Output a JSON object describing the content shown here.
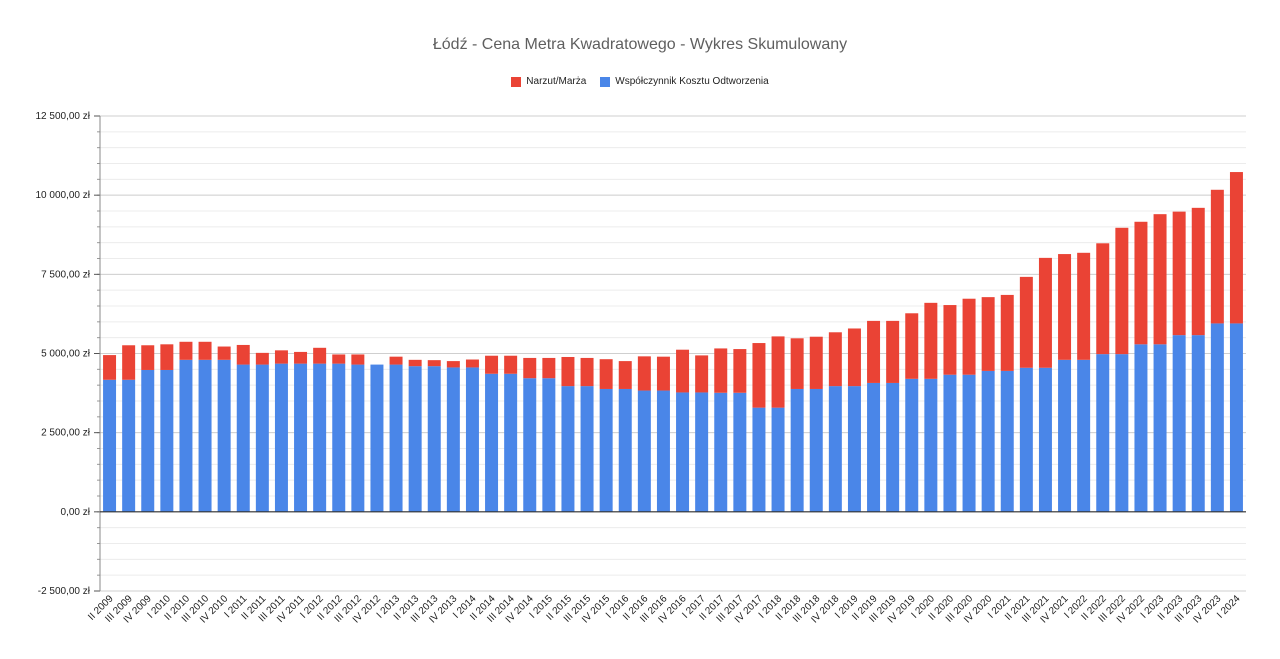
{
  "chart_data": {
    "type": "bar",
    "stacked": true,
    "title": "Łódź - Cena Metra Kwadratowego - Wykres Skumulowany",
    "xlabel": "",
    "ylabel": "",
    "ylim": [
      -2500,
      12500
    ],
    "yticks": [
      -2500,
      0,
      2500,
      5000,
      7500,
      10000,
      12500
    ],
    "ytick_labels": [
      "-2 500,00 zł",
      "0,00 zł",
      "2 500,00 zł",
      "5 000,00 zł",
      "7 500,00 zł",
      "10 000,00 zł",
      "12 500,00 zł"
    ],
    "grid": true,
    "legend": "top-center",
    "categories": [
      "II 2009",
      "III 2009",
      "IV 2009",
      "I 2010",
      "II 2010",
      "III 2010",
      "IV 2010",
      "I 2011",
      "II 2011",
      "III 2011",
      "IV 2011",
      "I 2012",
      "II 2012",
      "III 2012",
      "IV 2012",
      "I 2013",
      "II 2013",
      "III 2013",
      "IV 2013",
      "I 2014",
      "II 2014",
      "III 2014",
      "IV 2014",
      "I 2015",
      "II 2015",
      "III 2015",
      "IV 2015",
      "I 2016",
      "II 2016",
      "III 2016",
      "IV 2016",
      "I 2017",
      "II 2017",
      "III 2017",
      "IV 2017",
      "I 2018",
      "II 2018",
      "III 2018",
      "IV 2018",
      "I 2019",
      "II 2019",
      "III 2019",
      "IV 2019",
      "I 2020",
      "II 2020",
      "III 2020",
      "IV 2020",
      "I 2021",
      "II 2021",
      "III 2021",
      "IV 2021",
      "I 2022",
      "II 2022",
      "III 2022",
      "IV 2022",
      "I 2023",
      "II 2023",
      "III 2023",
      "IV 2023",
      "I 2024"
    ],
    "series": [
      {
        "name": "Współczynnik Kosztu Odtworzenia",
        "color": "#4a86e8",
        "values": [
          4170,
          4170,
          4480,
          4480,
          4800,
          4800,
          4800,
          4650,
          4650,
          4680,
          4680,
          4680,
          4680,
          4650,
          4650,
          4650,
          4600,
          4600,
          4560,
          4560,
          4360,
          4360,
          4220,
          4220,
          3970,
          3970,
          3880,
          3880,
          3830,
          3830,
          3770,
          3770,
          3760,
          3760,
          3290,
          3290,
          3880,
          3880,
          3970,
          3970,
          4070,
          4070,
          4200,
          4200,
          4330,
          4330,
          4450,
          4450,
          4550,
          4550,
          4800,
          4800,
          4980,
          4980,
          5290,
          5290,
          5580,
          5580,
          5950,
          5950
        ]
      },
      {
        "name": "Narzut/Marża",
        "color": "#ea4335",
        "values": [
          780,
          1090,
          780,
          810,
          570,
          570,
          420,
          620,
          370,
          420,
          370,
          500,
          290,
          320,
          0,
          250,
          200,
          190,
          200,
          250,
          570,
          570,
          640,
          640,
          920,
          890,
          940,
          880,
          1080,
          1070,
          1350,
          1170,
          1400,
          1380,
          2040,
          2250,
          1600,
          1650,
          1700,
          1820,
          1960,
          1960,
          2070,
          2400,
          2200,
          2400,
          2330,
          2400,
          2870,
          3470,
          3340,
          3380,
          3500,
          3990,
          3870,
          4110,
          3900,
          4020,
          4220,
          4780
        ]
      }
    ]
  }
}
